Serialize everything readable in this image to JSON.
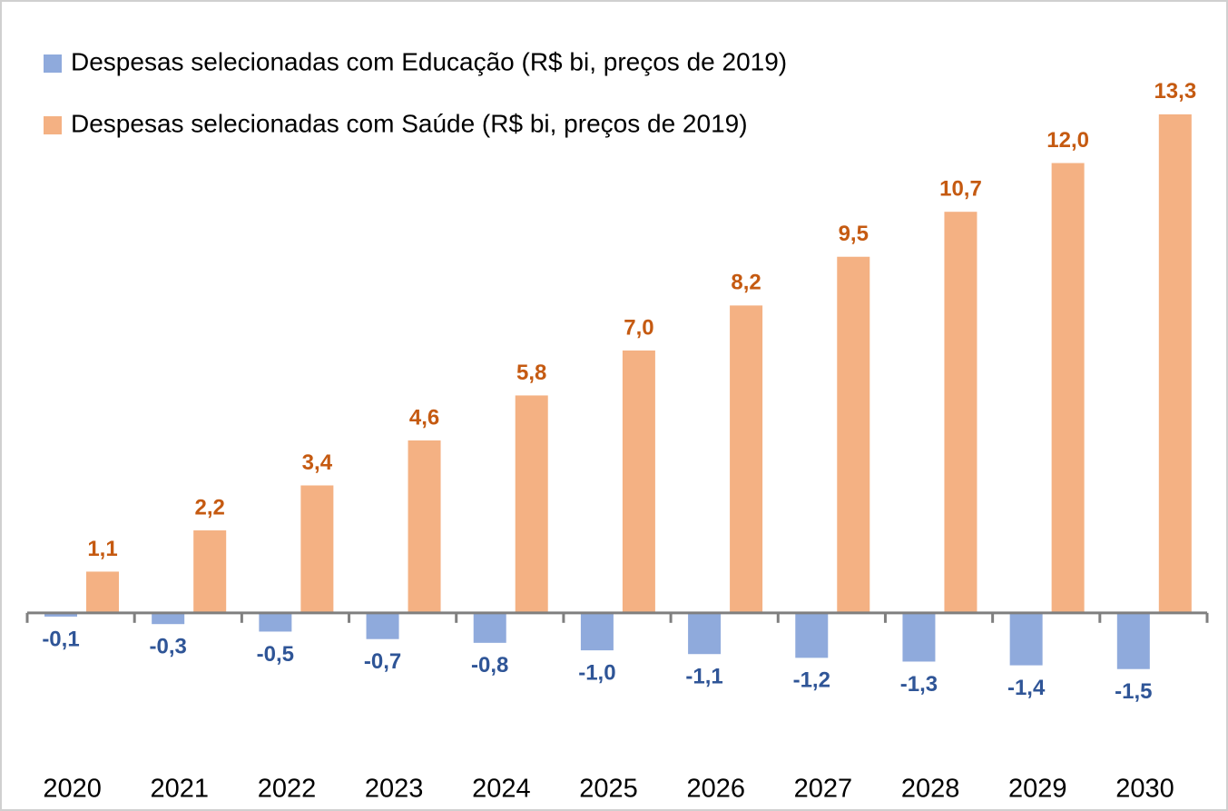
{
  "chart_data": {
    "type": "bar",
    "categories": [
      "2020",
      "2021",
      "2022",
      "2023",
      "2024",
      "2025",
      "2026",
      "2027",
      "2028",
      "2029",
      "2030"
    ],
    "series": [
      {
        "name": "Despesas selecionadas com Educação (R$ bi, preços de 2019)",
        "color": "#8faadc",
        "label_color": "#2f5597",
        "values": [
          -0.1,
          -0.3,
          -0.5,
          -0.7,
          -0.8,
          -1.0,
          -1.1,
          -1.2,
          -1.3,
          -1.4,
          -1.5
        ],
        "value_labels": [
          "-0,1",
          "-0,3",
          "-0,5",
          "-0,7",
          "-0,8",
          "-1,0",
          "-1,1",
          "-1,2",
          "-1,3",
          "-1,4",
          "-1,5"
        ]
      },
      {
        "name": "Despesas selecionadas com Saúde (R$ bi, preços de 2019)",
        "color": "#f4b183",
        "label_color": "#c55a11",
        "values": [
          1.1,
          2.2,
          3.4,
          4.6,
          5.8,
          7.0,
          8.2,
          9.5,
          10.7,
          12.0,
          13.3
        ],
        "value_labels": [
          "1,1",
          "2,2",
          "3,4",
          "4,6",
          "5,8",
          "7,0",
          "8,2",
          "9,5",
          "10,7",
          "12,0",
          "13,3"
        ]
      }
    ],
    "ylim": [
      -2.5,
      14
    ],
    "legend": "top-left"
  }
}
